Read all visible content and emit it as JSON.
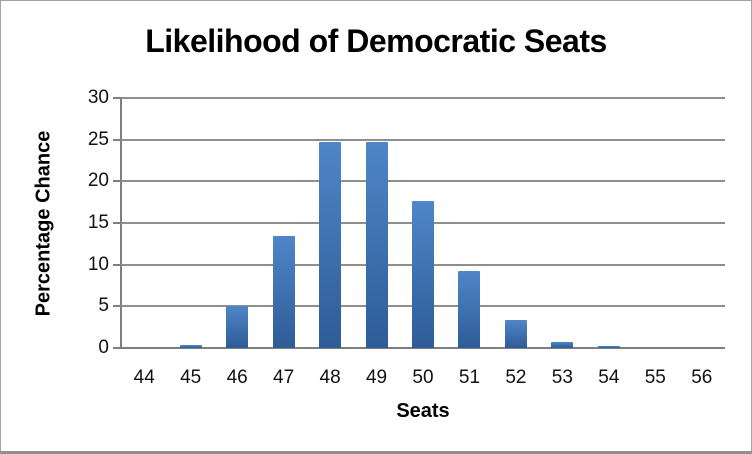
{
  "chart_data": {
    "type": "bar",
    "title": "Likelihood of Democratic Seats",
    "xlabel": "Seats",
    "ylabel": "Percentage Chance",
    "categories": [
      44,
      45,
      46,
      47,
      48,
      49,
      50,
      51,
      52,
      53,
      54,
      55,
      56
    ],
    "values": [
      0,
      0.4,
      5.0,
      13.4,
      24.7,
      24.7,
      17.7,
      9.2,
      3.4,
      0.7,
      0.2,
      0,
      0
    ],
    "ylim": [
      0,
      30
    ],
    "yticks": [
      0,
      5,
      10,
      15,
      20,
      25,
      30
    ],
    "grid": "horizontal",
    "legend": "none",
    "bar_color_top": "#4e86c8",
    "bar_color_bottom": "#2e5c97",
    "gridline_color": "#8e8e8e",
    "axis_color": "#7f7f7f",
    "text_color": "#111111",
    "frame_border_color": "#a3a3a3",
    "background": "#ffffff"
  }
}
